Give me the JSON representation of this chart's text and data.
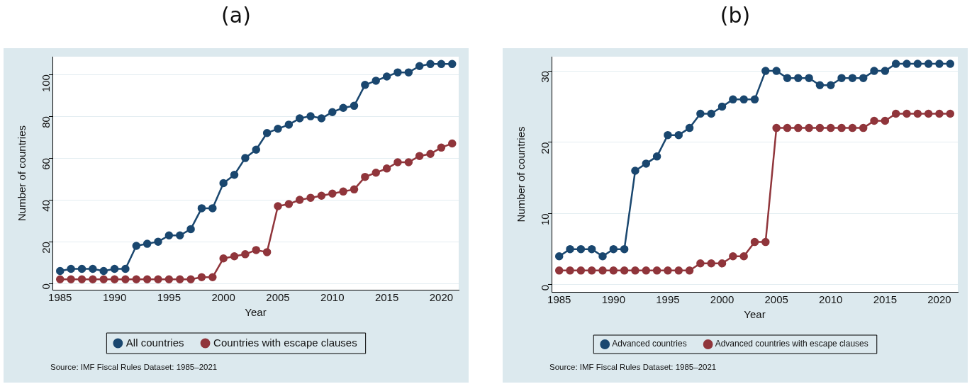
{
  "chart_data": [
    {
      "type": "line",
      "title": "(a)",
      "xlabel": "Year",
      "ylabel": "Number of countries",
      "x": [
        1985,
        1986,
        1987,
        1988,
        1989,
        1990,
        1991,
        1992,
        1993,
        1994,
        1995,
        1996,
        1997,
        1998,
        1999,
        2000,
        2001,
        2002,
        2003,
        2004,
        2005,
        2006,
        2007,
        2008,
        2009,
        2010,
        2011,
        2012,
        2013,
        2014,
        2015,
        2016,
        2017,
        2018,
        2019,
        2020,
        2021
      ],
      "series": [
        {
          "name": "All countries",
          "color": "#1a476f",
          "values": [
            6,
            7,
            7,
            7,
            6,
            7,
            7,
            18,
            19,
            20,
            23,
            23,
            26,
            36,
            36,
            48,
            52,
            60,
            64,
            72,
            74,
            76,
            79,
            80,
            79,
            82,
            84,
            85,
            95,
            97,
            99,
            101,
            101,
            104,
            105,
            105,
            105
          ]
        },
        {
          "name": "Countries with escape clauses",
          "color": "#90353b",
          "values": [
            2,
            2,
            2,
            2,
            2,
            2,
            2,
            2,
            2,
            2,
            2,
            2,
            2,
            3,
            3,
            12,
            13,
            14,
            16,
            15,
            37,
            38,
            40,
            41,
            42,
            43,
            44,
            45,
            51,
            53,
            55,
            58,
            58,
            61,
            62,
            65,
            67
          ]
        }
      ],
      "xlim": [
        1984.3,
        2021.6
      ],
      "xticks": [
        1985,
        1990,
        1995,
        2000,
        2005,
        2010,
        2015,
        2020
      ],
      "ylim": [
        -3,
        108.5
      ],
      "yticks": [
        0,
        20,
        40,
        60,
        80,
        100
      ],
      "grid": "y",
      "legend": "bottom",
      "marker": "circle",
      "line_style": "solid",
      "annotations": [
        "Source: IMF Fiscal Rules Dataset: 1985–2021"
      ]
    },
    {
      "type": "line",
      "title": "(b)",
      "xlabel": "Year",
      "ylabel": "Number of countries",
      "x": [
        1985,
        1986,
        1987,
        1988,
        1989,
        1990,
        1991,
        1992,
        1993,
        1994,
        1995,
        1996,
        1997,
        1998,
        1999,
        2000,
        2001,
        2002,
        2003,
        2004,
        2005,
        2006,
        2007,
        2008,
        2009,
        2010,
        2011,
        2012,
        2013,
        2014,
        2015,
        2016,
        2017,
        2018,
        2019,
        2020,
        2021
      ],
      "series": [
        {
          "name": "Advanced countries",
          "color": "#1a476f",
          "values": [
            4,
            5,
            5,
            5,
            4,
            5,
            5,
            16,
            17,
            18,
            21,
            21,
            22,
            24,
            24,
            25,
            26,
            26,
            26,
            30,
            30,
            29,
            29,
            29,
            28,
            28,
            29,
            29,
            29,
            30,
            30,
            31,
            31,
            31,
            31,
            31,
            31
          ]
        },
        {
          "name": "Advanced countries with escape clauses",
          "color": "#90353b",
          "values": [
            2,
            2,
            2,
            2,
            2,
            2,
            2,
            2,
            2,
            2,
            2,
            2,
            2,
            3,
            3,
            3,
            4,
            4,
            6,
            6,
            22,
            22,
            22,
            22,
            22,
            22,
            22,
            22,
            22,
            23,
            23,
            24,
            24,
            24,
            24,
            24,
            24
          ]
        }
      ],
      "xlim": [
        1984.3,
        2021.7
      ],
      "xticks": [
        1985,
        1990,
        1995,
        2000,
        2005,
        2010,
        2015,
        2020
      ],
      "ylim": [
        -1,
        32
      ],
      "yticks": [
        0,
        10,
        20,
        30
      ],
      "grid": "y",
      "legend": "bottom",
      "marker": "circle",
      "line_style": "solid",
      "annotations": [
        "Source: IMF Fiscal Rules Dataset: 1985–2021"
      ]
    }
  ]
}
